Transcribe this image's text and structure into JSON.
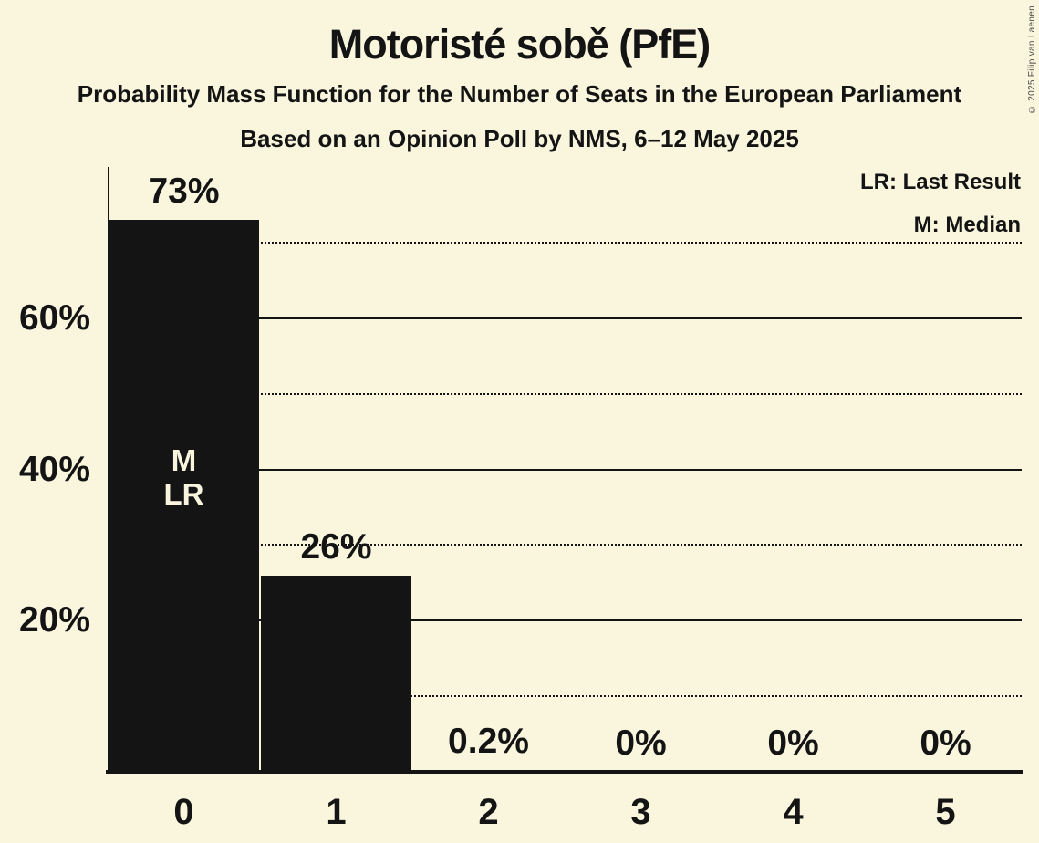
{
  "chart_data": {
    "type": "bar",
    "title": "Motoristé sobě (PfE)",
    "subtitle": "Probability Mass Function for the Number of Seats in the European Parliament",
    "source_line": "Based on an Opinion Poll by NMS, 6–12 May 2025",
    "copyright": "© 2025 Filip van Laenen",
    "categories": [
      "0",
      "1",
      "2",
      "3",
      "4",
      "5"
    ],
    "values": [
      73,
      26,
      0.2,
      0,
      0,
      0
    ],
    "value_labels": [
      "73%",
      "26%",
      "0.2%",
      "0%",
      "0%",
      "0%"
    ],
    "bar_annotations": [
      [
        "M",
        "LR"
      ],
      [],
      [],
      [],
      [],
      []
    ],
    "xlabel": "",
    "ylabel": "",
    "ylim": [
      0,
      80
    ],
    "y_ticks": [
      {
        "value": 20,
        "label": "20%"
      },
      {
        "value": 40,
        "label": "40%"
      },
      {
        "value": 60,
        "label": "60%"
      }
    ],
    "gridlines": {
      "solid": [
        20,
        40,
        60
      ],
      "dotted": [
        10,
        30,
        50,
        70
      ]
    },
    "grid": true,
    "legend_position": "top-right",
    "legend": [
      "LR: Last Result",
      "M: Median"
    ],
    "colors": {
      "background": "#FAF6DE",
      "bar": "#141414",
      "text": "#141414",
      "bar_annotation_text": "#F8F4DE",
      "copyright_text": "#4A4A4A"
    }
  }
}
